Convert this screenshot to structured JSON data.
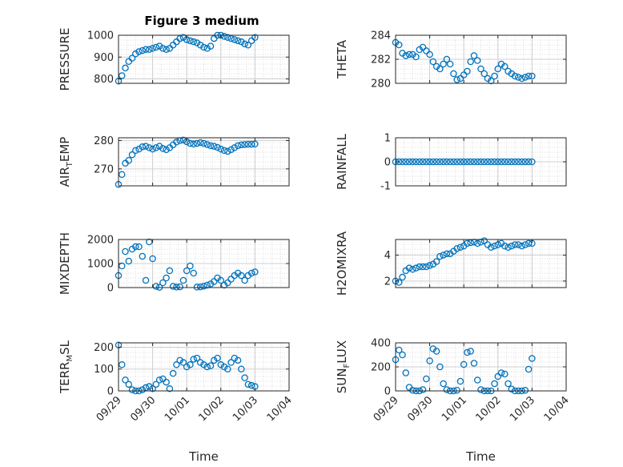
{
  "figure": {
    "title": "Figure 3 medium"
  },
  "chart_data": [
    {
      "id": "pressure",
      "type": "scatter",
      "ylabel": "PRESSURE",
      "xlabel": "",
      "ylim": [
        780,
        1000
      ],
      "yticks": [
        800,
        900,
        1000
      ],
      "ytick_labels": [
        "800",
        "900",
        "1000"
      ],
      "x": [
        0.0,
        0.1,
        0.2,
        0.3,
        0.4,
        0.5,
        0.6,
        0.7,
        0.8,
        0.9,
        1.0,
        1.1,
        1.2,
        1.3,
        1.4,
        1.5,
        1.6,
        1.7,
        1.8,
        1.9,
        2.0,
        2.1,
        2.2,
        2.3,
        2.4,
        2.5,
        2.6,
        2.7,
        2.8,
        2.9,
        3.0,
        3.1,
        3.2,
        3.3,
        3.4,
        3.5,
        3.6,
        3.7,
        3.8,
        3.9,
        4.0
      ],
      "y": [
        790,
        815,
        850,
        880,
        895,
        915,
        925,
        930,
        935,
        935,
        940,
        945,
        950,
        940,
        935,
        940,
        955,
        970,
        985,
        990,
        980,
        975,
        970,
        965,
        955,
        945,
        940,
        950,
        985,
        1000,
        1000,
        995,
        990,
        985,
        980,
        975,
        970,
        960,
        955,
        975,
        990
      ]
    },
    {
      "id": "theta",
      "type": "scatter",
      "ylabel": "THETA",
      "xlabel": "",
      "ylim": [
        280,
        284
      ],
      "yticks": [
        280,
        282,
        284
      ],
      "ytick_labels": [
        "280",
        "282",
        "284"
      ],
      "x": [
        0.0,
        0.1,
        0.2,
        0.3,
        0.4,
        0.5,
        0.6,
        0.7,
        0.8,
        0.9,
        1.0,
        1.1,
        1.2,
        1.3,
        1.4,
        1.5,
        1.6,
        1.7,
        1.8,
        1.9,
        2.0,
        2.1,
        2.2,
        2.3,
        2.4,
        2.5,
        2.6,
        2.7,
        2.8,
        2.9,
        3.0,
        3.1,
        3.2,
        3.3,
        3.4,
        3.5,
        3.6,
        3.7,
        3.8,
        3.9,
        4.0
      ],
      "y": [
        283.4,
        283.2,
        282.5,
        282.3,
        282.4,
        282.4,
        282.2,
        282.8,
        283.0,
        282.7,
        282.4,
        281.8,
        281.4,
        281.2,
        281.6,
        282.0,
        281.6,
        280.8,
        280.3,
        280.4,
        280.7,
        281.0,
        281.8,
        282.3,
        281.9,
        281.2,
        280.8,
        280.4,
        280.2,
        280.6,
        281.2,
        281.6,
        281.4,
        281.0,
        280.8,
        280.6,
        280.5,
        280.4,
        280.5,
        280.6,
        280.6
      ]
    },
    {
      "id": "air_temp",
      "type": "scatter",
      "ylabel": "AIR_TEMP",
      "xlabel": "",
      "ylim": [
        264,
        281
      ],
      "yticks": [
        270,
        280
      ],
      "ytick_labels": [
        "270",
        "280"
      ],
      "x": [
        0.0,
        0.1,
        0.2,
        0.3,
        0.4,
        0.5,
        0.6,
        0.7,
        0.8,
        0.9,
        1.0,
        1.1,
        1.2,
        1.3,
        1.4,
        1.5,
        1.6,
        1.7,
        1.8,
        1.9,
        2.0,
        2.1,
        2.2,
        2.3,
        2.4,
        2.5,
        2.6,
        2.7,
        2.8,
        2.9,
        3.0,
        3.1,
        3.2,
        3.3,
        3.4,
        3.5,
        3.6,
        3.7,
        3.8,
        3.9,
        4.0
      ],
      "y": [
        264.5,
        268,
        272,
        273,
        275,
        276.5,
        277,
        277.8,
        278,
        277.5,
        277,
        277.5,
        278,
        277.2,
        276.8,
        277.5,
        278.5,
        279.5,
        280,
        280.2,
        279.6,
        279,
        278.8,
        279,
        279.3,
        279,
        278.6,
        278.2,
        278,
        277.6,
        277,
        276.5,
        276.2,
        276.8,
        277.5,
        278.2,
        278.5,
        278.6,
        278.7,
        278.7,
        278.8
      ]
    },
    {
      "id": "rainfall",
      "type": "scatter",
      "ylabel": "RAINFALL",
      "xlabel": "",
      "ylim": [
        -1,
        1
      ],
      "yticks": [
        -1,
        0,
        1
      ],
      "ytick_labels": [
        "-1",
        "0",
        "1"
      ],
      "x": [
        0.0,
        0.1,
        0.2,
        0.3,
        0.4,
        0.5,
        0.6,
        0.7,
        0.8,
        0.9,
        1.0,
        1.1,
        1.2,
        1.3,
        1.4,
        1.5,
        1.6,
        1.7,
        1.8,
        1.9,
        2.0,
        2.1,
        2.2,
        2.3,
        2.4,
        2.5,
        2.6,
        2.7,
        2.8,
        2.9,
        3.0,
        3.1,
        3.2,
        3.3,
        3.4,
        3.5,
        3.6,
        3.7,
        3.8,
        3.9,
        4.0
      ],
      "y": [
        0,
        0,
        0,
        0,
        0,
        0,
        0,
        0,
        0,
        0,
        0,
        0,
        0,
        0,
        0,
        0,
        0,
        0,
        0,
        0,
        0,
        0,
        0,
        0,
        0,
        0,
        0,
        0,
        0,
        0,
        0,
        0,
        0,
        0,
        0,
        0,
        0,
        0,
        0,
        0,
        0
      ]
    },
    {
      "id": "mixdepth",
      "type": "scatter",
      "ylabel": "MIXDEPTH",
      "xlabel": "",
      "ylim": [
        0,
        2000
      ],
      "yticks": [
        0,
        1000,
        2000
      ],
      "ytick_labels": [
        "0",
        "1000",
        "2000"
      ],
      "x": [
        0.0,
        0.1,
        0.2,
        0.3,
        0.4,
        0.5,
        0.6,
        0.7,
        0.8,
        0.9,
        1.0,
        1.1,
        1.2,
        1.3,
        1.4,
        1.5,
        1.6,
        1.7,
        1.8,
        1.9,
        2.0,
        2.1,
        2.2,
        2.3,
        2.4,
        2.5,
        2.6,
        2.7,
        2.8,
        2.9,
        3.0,
        3.1,
        3.2,
        3.3,
        3.4,
        3.5,
        3.6,
        3.7,
        3.8,
        3.9,
        4.0
      ],
      "y": [
        500,
        900,
        1500,
        1100,
        1600,
        1700,
        1700,
        1300,
        300,
        1900,
        1200,
        50,
        10,
        200,
        400,
        700,
        50,
        20,
        30,
        300,
        700,
        900,
        600,
        20,
        30,
        60,
        100,
        150,
        250,
        400,
        300,
        100,
        200,
        350,
        500,
        600,
        500,
        300,
        500,
        600,
        650
      ]
    },
    {
      "id": "h2omixra",
      "type": "scatter",
      "ylabel": "H2OMIXRA",
      "xlabel": "",
      "ylim": [
        1.5,
        5.2
      ],
      "yticks": [
        2,
        4
      ],
      "ytick_labels": [
        "2",
        "4"
      ],
      "x": [
        0.0,
        0.1,
        0.2,
        0.3,
        0.4,
        0.5,
        0.6,
        0.7,
        0.8,
        0.9,
        1.0,
        1.1,
        1.2,
        1.3,
        1.4,
        1.5,
        1.6,
        1.7,
        1.8,
        1.9,
        2.0,
        2.1,
        2.2,
        2.3,
        2.4,
        2.5,
        2.6,
        2.7,
        2.8,
        2.9,
        3.0,
        3.1,
        3.2,
        3.3,
        3.4,
        3.5,
        3.6,
        3.7,
        3.8,
        3.9,
        4.0
      ],
      "y": [
        2.0,
        1.9,
        2.3,
        2.8,
        3.0,
        2.9,
        3.0,
        3.1,
        3.1,
        3.1,
        3.2,
        3.3,
        3.5,
        3.9,
        4.0,
        4.1,
        4.1,
        4.3,
        4.5,
        4.6,
        4.7,
        4.9,
        4.95,
        5.0,
        4.9,
        5.0,
        5.1,
        4.8,
        4.6,
        4.7,
        4.8,
        4.9,
        4.7,
        4.6,
        4.7,
        4.8,
        4.8,
        4.7,
        4.8,
        4.9,
        4.9
      ]
    },
    {
      "id": "terr_msl",
      "type": "scatter",
      "ylabel": "TERR_MSL",
      "xlabel": "Time",
      "ylim": [
        0,
        220
      ],
      "yticks": [
        0,
        100,
        200
      ],
      "ytick_labels": [
        "0",
        "100",
        "200"
      ],
      "x": [
        0.0,
        0.1,
        0.2,
        0.3,
        0.4,
        0.5,
        0.6,
        0.7,
        0.8,
        0.9,
        1.0,
        1.1,
        1.2,
        1.3,
        1.4,
        1.5,
        1.6,
        1.7,
        1.8,
        1.9,
        2.0,
        2.1,
        2.2,
        2.3,
        2.4,
        2.5,
        2.6,
        2.7,
        2.8,
        2.9,
        3.0,
        3.1,
        3.2,
        3.3,
        3.4,
        3.5,
        3.6,
        3.7,
        3.8,
        3.9,
        4.0
      ],
      "y": [
        210,
        120,
        50,
        30,
        5,
        0,
        0,
        5,
        15,
        20,
        10,
        30,
        50,
        55,
        40,
        10,
        80,
        120,
        140,
        130,
        110,
        120,
        145,
        150,
        130,
        120,
        110,
        115,
        140,
        150,
        120,
        110,
        100,
        130,
        150,
        140,
        100,
        60,
        30,
        25,
        20
      ]
    },
    {
      "id": "sun_flux",
      "type": "scatter",
      "ylabel": "SUN_FLUX",
      "xlabel": "Time",
      "ylim": [
        0,
        400
      ],
      "yticks": [
        0,
        200,
        400
      ],
      "ytick_labels": [
        "0",
        "200",
        "400"
      ],
      "x": [
        0.0,
        0.1,
        0.2,
        0.3,
        0.4,
        0.5,
        0.6,
        0.7,
        0.8,
        0.9,
        1.0,
        1.1,
        1.2,
        1.3,
        1.4,
        1.5,
        1.6,
        1.7,
        1.8,
        1.9,
        2.0,
        2.1,
        2.2,
        2.3,
        2.4,
        2.5,
        2.6,
        2.7,
        2.8,
        2.9,
        3.0,
        3.1,
        3.2,
        3.3,
        3.4,
        3.5,
        3.6,
        3.7,
        3.8,
        3.9,
        4.0
      ],
      "y": [
        260,
        340,
        300,
        150,
        30,
        5,
        0,
        0,
        10,
        100,
        250,
        350,
        330,
        200,
        60,
        10,
        0,
        0,
        5,
        80,
        220,
        320,
        330,
        230,
        90,
        10,
        0,
        0,
        0,
        60,
        120,
        150,
        140,
        60,
        15,
        0,
        0,
        0,
        5,
        180,
        270
      ]
    }
  ],
  "shared": {
    "xlim": [
      0,
      5
    ],
    "xticks": [
      0,
      1,
      2,
      3,
      4,
      5
    ],
    "xtick_labels": [
      "09/29",
      "09/30",
      "10/01",
      "10/02",
      "10/03",
      "10/04"
    ],
    "marker_color": "#0072BD"
  }
}
